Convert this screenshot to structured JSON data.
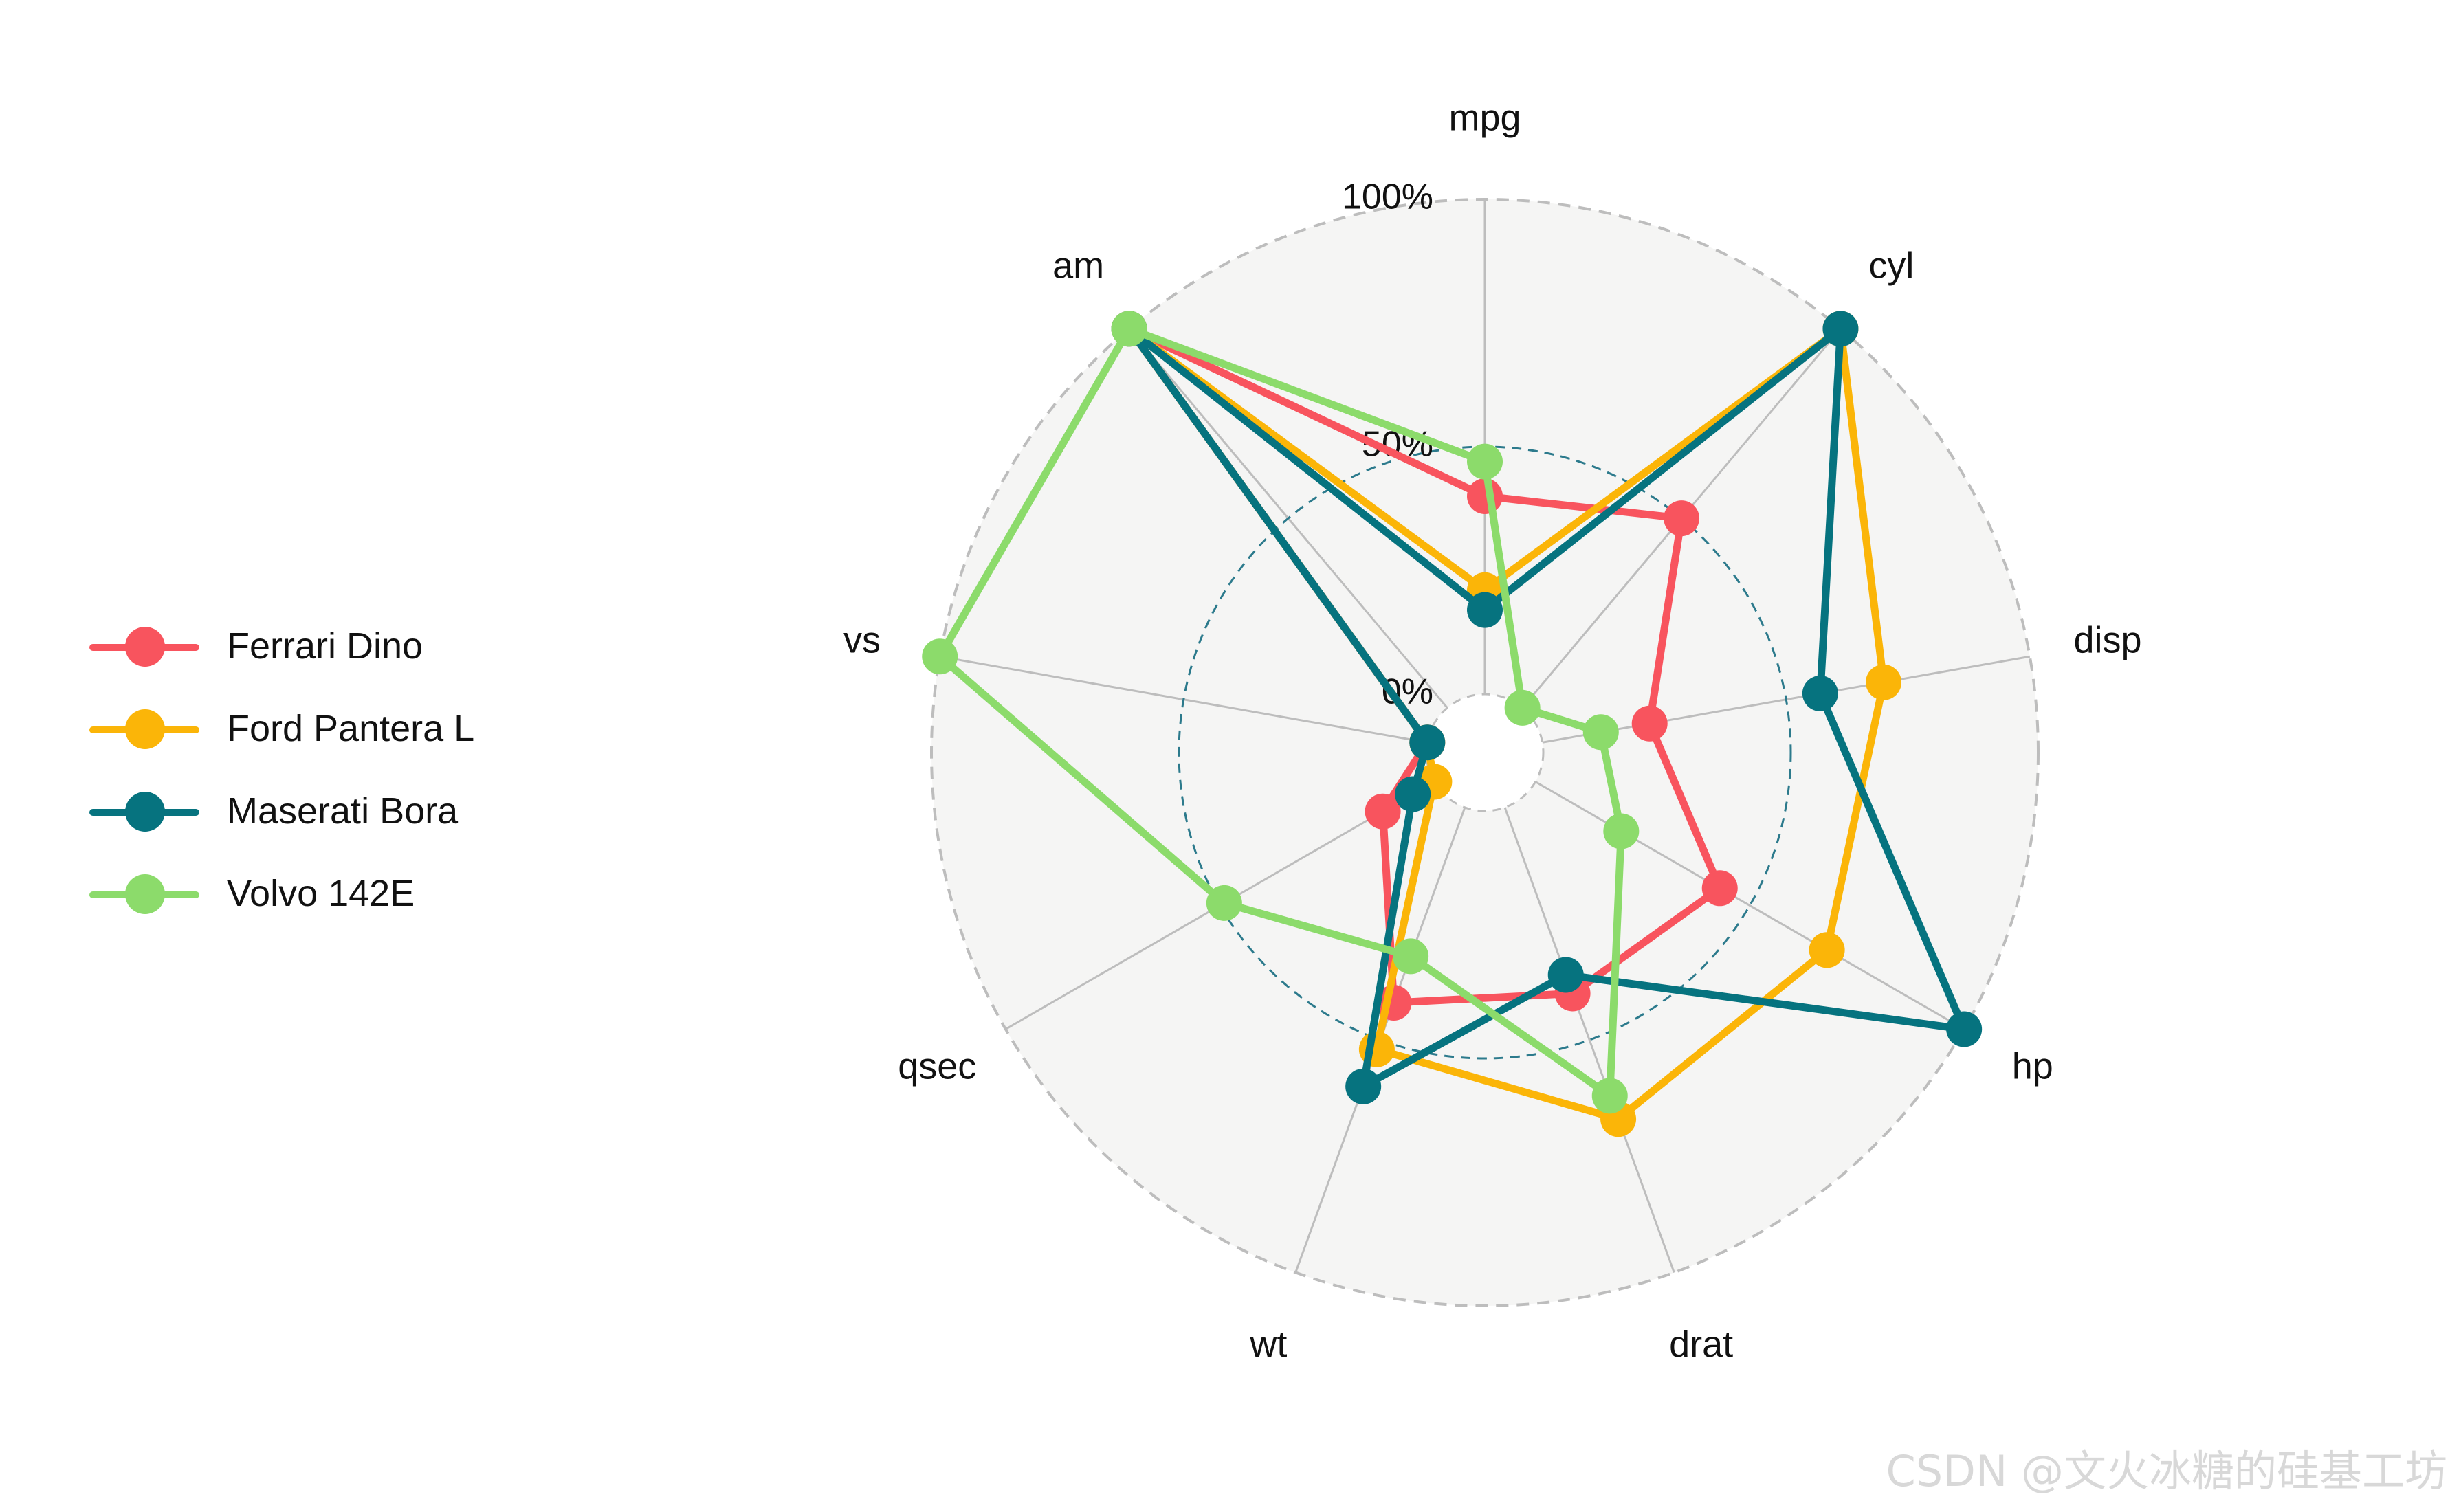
{
  "chart_data": {
    "type": "radar",
    "axes": [
      "mpg",
      "cyl",
      "disp",
      "hp",
      "drat",
      "wt",
      "qsec",
      "vs",
      "am"
    ],
    "grid_labels": [
      "0%",
      "50%",
      "100%"
    ],
    "range": [
      0,
      1
    ],
    "series": [
      {
        "name": "Ferrari Dino",
        "color": "#F8545E",
        "values": [
          0.4,
          0.5,
          0.22,
          0.43,
          0.4,
          0.42,
          0.12,
          0.0,
          1.0
        ]
      },
      {
        "name": "Ford Pantera L",
        "color": "#FBB508",
        "values": [
          0.21,
          1.0,
          0.7,
          0.68,
          0.67,
          0.52,
          0.0,
          0.0,
          1.0
        ]
      },
      {
        "name": "Maserati Bora",
        "color": "#06737F",
        "values": [
          0.17,
          1.0,
          0.57,
          1.0,
          0.36,
          0.6,
          0.05,
          0.0,
          1.0
        ]
      },
      {
        "name": "Volvo 142E",
        "color": "#8CDB6B",
        "values": [
          0.47,
          0.0,
          0.12,
          0.2,
          0.62,
          0.32,
          0.49,
          1.0,
          1.0
        ]
      }
    ],
    "legend_position": "left"
  },
  "watermark": "CSDN @文火冰糖的硅基工坊"
}
